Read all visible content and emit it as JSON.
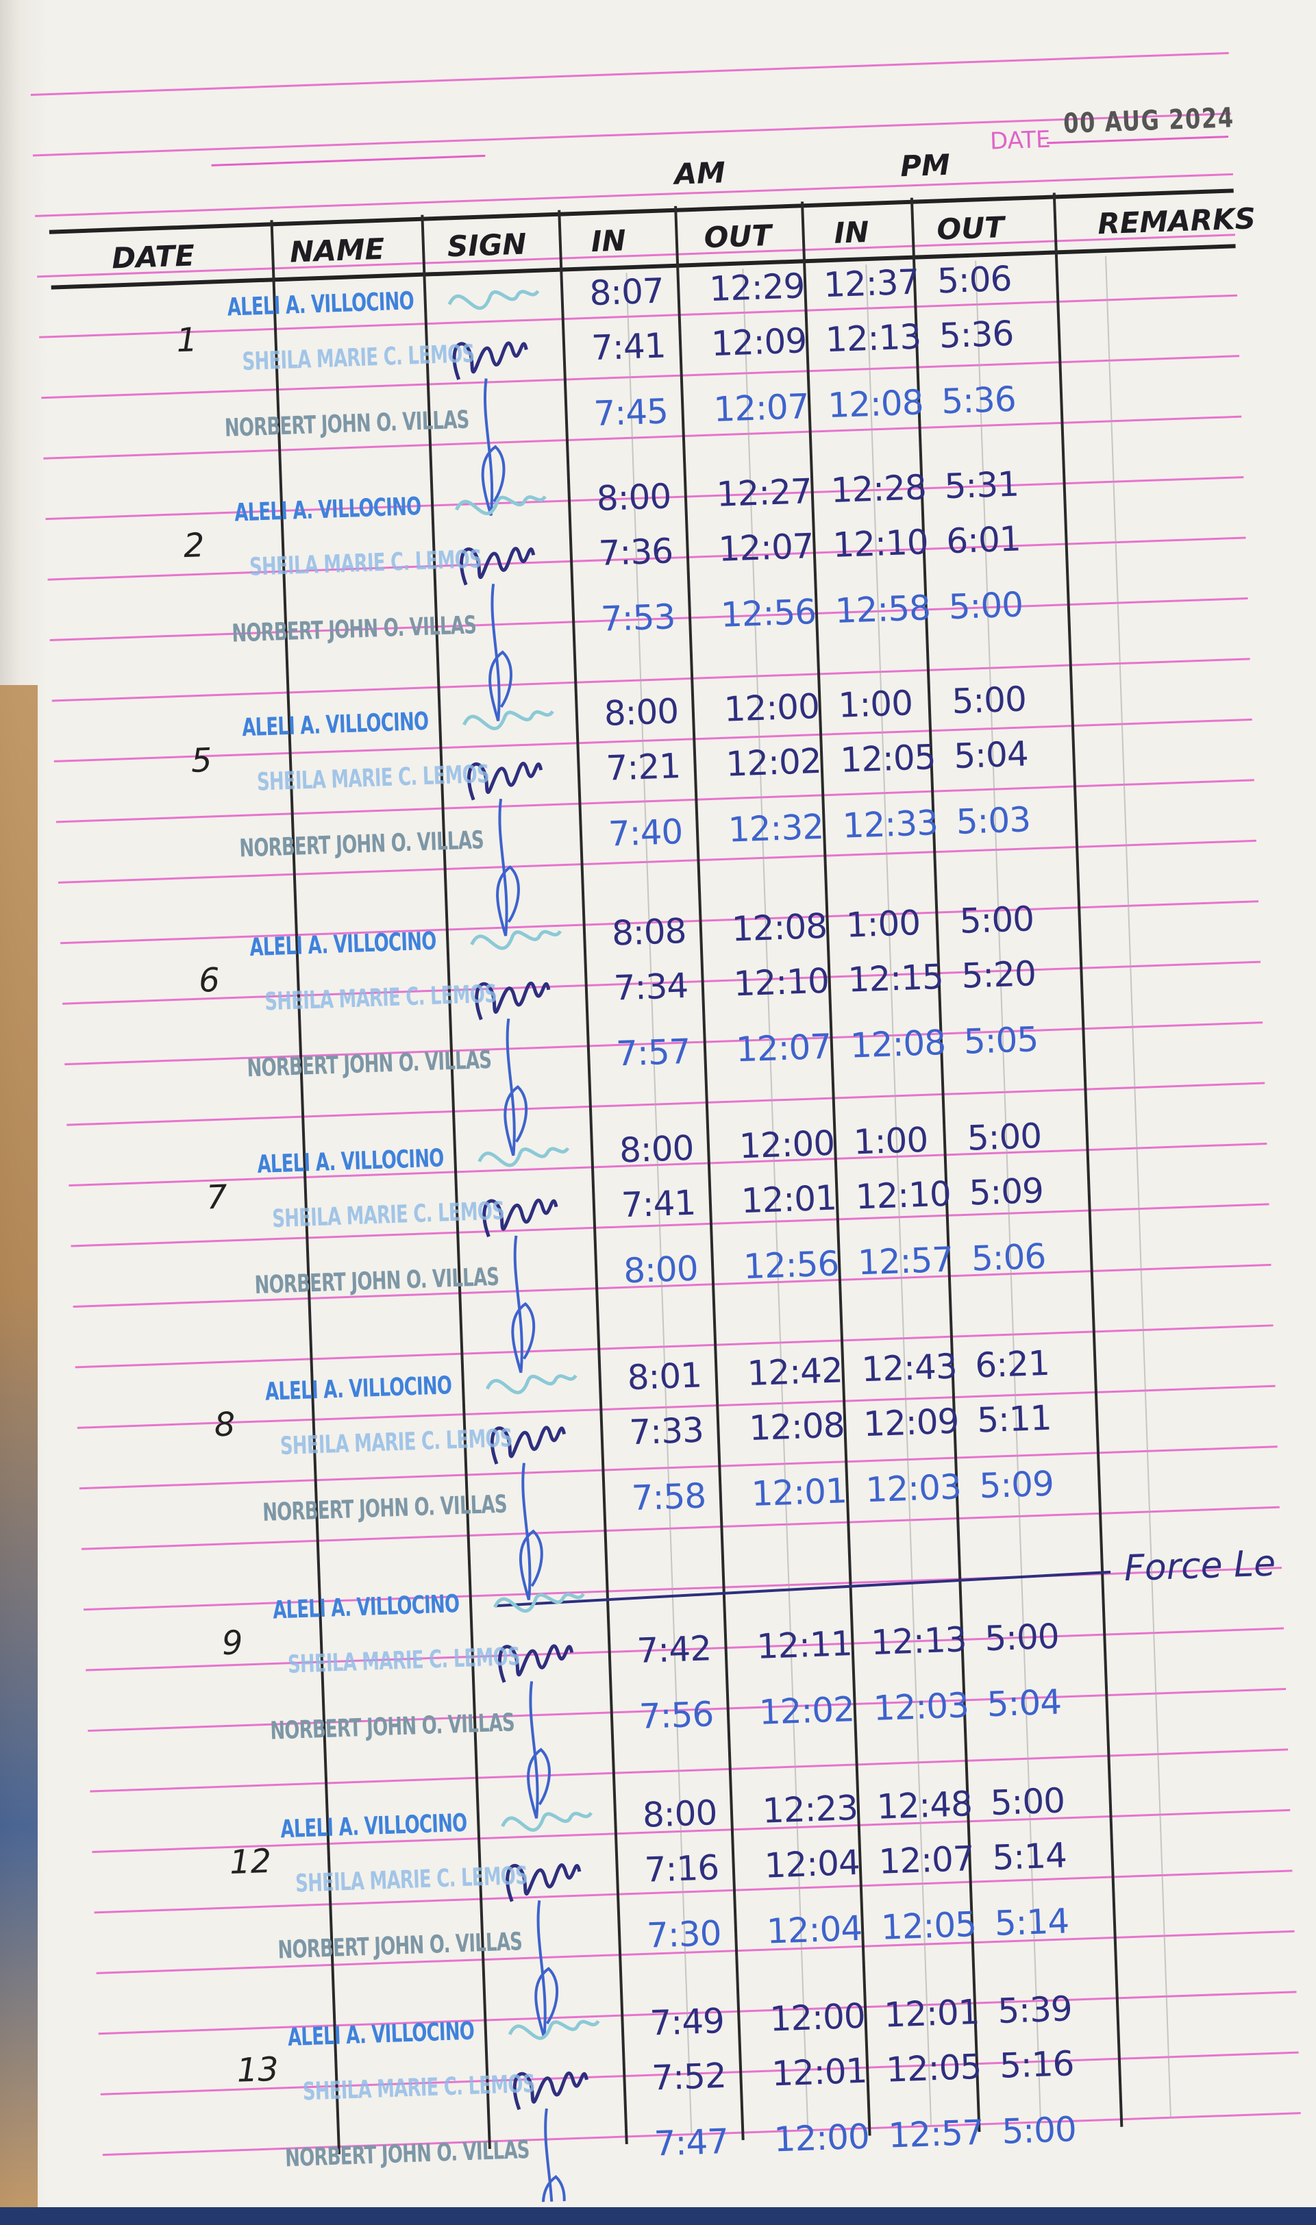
{
  "header": {
    "date_label": "DATE",
    "date_stamp": "00 AUG 2024",
    "period_am": "AM",
    "period_pm": "PM",
    "columns": [
      "DATE",
      "NAME",
      "SIGN",
      "IN",
      "OUT",
      "IN",
      "OUT",
      "REMARKS"
    ]
  },
  "colors": {
    "ink_dark": "#2e2f7e",
    "ink_blue": "#3d63cc",
    "ruling_pink": "#e45fc9",
    "stamp_blue": "#3f82dc"
  },
  "entries": [
    {
      "date": "1",
      "rows": [
        {
          "name": "ALELI A. VILLOCINO",
          "am_in": "8:07",
          "am_out": "12:29",
          "pm_in": "12:37",
          "pm_out": "5:06"
        },
        {
          "name": "SHEILA MARIE C. LEMOS",
          "am_in": "7:41",
          "am_out": "12:09",
          "pm_in": "12:13",
          "pm_out": "5:36"
        },
        {
          "name": "NORBERT JOHN O. VILLAS",
          "am_in": "7:45",
          "am_out": "12:07",
          "pm_in": "12:08",
          "pm_out": "5:36"
        }
      ]
    },
    {
      "date": "2",
      "rows": [
        {
          "name": "ALELI A. VILLOCINO",
          "am_in": "8:00",
          "am_out": "12:27",
          "pm_in": "12:28",
          "pm_out": "5:31"
        },
        {
          "name": "SHEILA MARIE C. LEMOS",
          "am_in": "7:36",
          "am_out": "12:07",
          "pm_in": "12:10",
          "pm_out": "6:01"
        },
        {
          "name": "NORBERT JOHN O. VILLAS",
          "am_in": "7:53",
          "am_out": "12:56",
          "pm_in": "12:58",
          "pm_out": "5:00"
        }
      ]
    },
    {
      "date": "5",
      "rows": [
        {
          "name": "ALELI A. VILLOCINO",
          "am_in": "8:00",
          "am_out": "12:00",
          "pm_in": "1:00",
          "pm_out": "5:00"
        },
        {
          "name": "SHEILA MARIE C. LEMOS",
          "am_in": "7:21",
          "am_out": "12:02",
          "pm_in": "12:05",
          "pm_out": "5:04"
        },
        {
          "name": "NORBERT JOHN O. VILLAS",
          "am_in": "7:40",
          "am_out": "12:32",
          "pm_in": "12:33",
          "pm_out": "5:03"
        }
      ]
    },
    {
      "date": "6",
      "rows": [
        {
          "name": "ALELI A. VILLOCINO",
          "am_in": "8:08",
          "am_out": "12:08",
          "pm_in": "1:00",
          "pm_out": "5:00"
        },
        {
          "name": "SHEILA MARIE C. LEMOS",
          "am_in": "7:34",
          "am_out": "12:10",
          "pm_in": "12:15",
          "pm_out": "5:20"
        },
        {
          "name": "NORBERT JOHN O. VILLAS",
          "am_in": "7:57",
          "am_out": "12:07",
          "pm_in": "12:08",
          "pm_out": "5:05"
        }
      ]
    },
    {
      "date": "7",
      "rows": [
        {
          "name": "ALELI A. VILLOCINO",
          "am_in": "8:00",
          "am_out": "12:00",
          "pm_in": "1:00",
          "pm_out": "5:00"
        },
        {
          "name": "SHEILA MARIE C. LEMOS",
          "am_in": "7:41",
          "am_out": "12:01",
          "pm_in": "12:10",
          "pm_out": "5:09"
        },
        {
          "name": "NORBERT JOHN O. VILLAS",
          "am_in": "8:00",
          "am_out": "12:56",
          "pm_in": "12:57",
          "pm_out": "5:06"
        }
      ]
    },
    {
      "date": "8",
      "rows": [
        {
          "name": "ALELI A. VILLOCINO",
          "am_in": "8:01",
          "am_out": "12:42",
          "pm_in": "12:43",
          "pm_out": "6:21"
        },
        {
          "name": "SHEILA MARIE C. LEMOS",
          "am_in": "7:33",
          "am_out": "12:08",
          "pm_in": "12:09",
          "pm_out": "5:11"
        },
        {
          "name": "NORBERT JOHN O. VILLAS",
          "am_in": "7:58",
          "am_out": "12:01",
          "pm_in": "12:03",
          "pm_out": "5:09"
        }
      ]
    },
    {
      "date": "9",
      "remarks": "Force Le",
      "rows": [
        {
          "name": "ALELI A. VILLOCINO"
        },
        {
          "name": "SHEILA MARIE C. LEMOS",
          "am_in": "7:42",
          "am_out": "12:11",
          "pm_in": "12:13",
          "pm_out": "5:00"
        },
        {
          "name": "NORBERT JOHN O. VILLAS",
          "am_in": "7:56",
          "am_out": "12:02",
          "pm_in": "12:03",
          "pm_out": "5:04"
        }
      ]
    },
    {
      "date": "12",
      "rows": [
        {
          "name": "ALELI A. VILLOCINO",
          "am_in": "8:00",
          "am_out": "12:23",
          "pm_in": "12:48",
          "pm_out": "5:00"
        },
        {
          "name": "SHEILA MARIE C. LEMOS",
          "am_in": "7:16",
          "am_out": "12:04",
          "pm_in": "12:07",
          "pm_out": "5:14"
        },
        {
          "name": "NORBERT JOHN O. VILLAS",
          "am_in": "7:30",
          "am_out": "12:04",
          "pm_in": "12:05",
          "pm_out": "5:14"
        }
      ]
    },
    {
      "date": "13",
      "rows": [
        {
          "name": "ALELI A. VILLOCINO",
          "am_in": "7:49",
          "am_out": "12:00",
          "pm_in": "12:01",
          "pm_out": "5:39"
        },
        {
          "name": "SHEILA MARIE C. LEMOS",
          "am_in": "7:52",
          "am_out": "12:01",
          "pm_in": "12:05",
          "pm_out": "5:16"
        },
        {
          "name": "NORBERT JOHN O. VILLAS",
          "am_in": "7:47",
          "am_out": "12:00",
          "pm_in": "12:57",
          "pm_out": "5:00"
        }
      ]
    }
  ]
}
